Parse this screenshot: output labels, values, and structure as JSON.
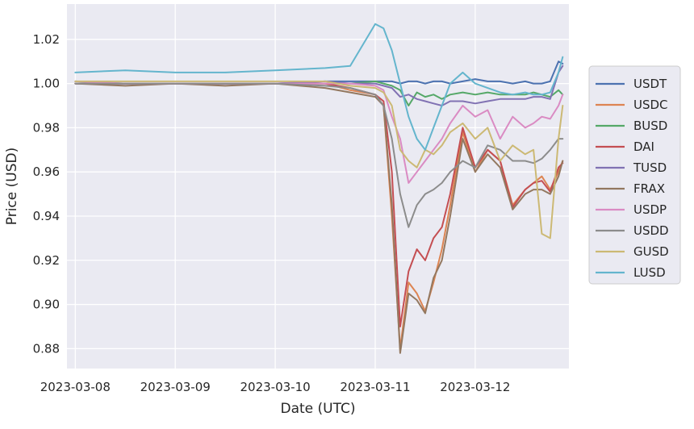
{
  "chart_data": {
    "type": "line",
    "title": "",
    "xlabel": "Date (UTC)",
    "ylabel": "Price (USD)",
    "xlim": [
      "2023-03-07T22:00",
      "2023-03-12T22:30"
    ],
    "ylim": [
      0.871,
      1.036
    ],
    "grid": true,
    "legend_position": "right",
    "x_ticks": [
      "2023-03-08",
      "2023-03-09",
      "2023-03-10",
      "2023-03-11",
      "2023-03-12"
    ],
    "y_ticks": [
      "1.02",
      "1.00",
      "0.98",
      "0.96",
      "0.94",
      "0.92",
      "0.90",
      "0.88"
    ],
    "x": [
      "2023-03-08T00:00",
      "2023-03-08T12:00",
      "2023-03-09T00:00",
      "2023-03-09T12:00",
      "2023-03-10T00:00",
      "2023-03-10T12:00",
      "2023-03-10T18:00",
      "2023-03-11T00:00",
      "2023-03-11T02:00",
      "2023-03-11T04:00",
      "2023-03-11T06:00",
      "2023-03-11T08:00",
      "2023-03-11T10:00",
      "2023-03-11T12:00",
      "2023-03-11T14:00",
      "2023-03-11T16:00",
      "2023-03-11T18:00",
      "2023-03-11T21:00",
      "2023-03-12T00:00",
      "2023-03-12T03:00",
      "2023-03-12T06:00",
      "2023-03-12T09:00",
      "2023-03-12T12:00",
      "2023-03-12T14:00",
      "2023-03-12T16:00",
      "2023-03-12T18:00",
      "2023-03-12T20:00",
      "2023-03-12T21:00"
    ],
    "series": [
      {
        "name": "USDT",
        "color": "#4c72b0",
        "values": [
          1.0,
          1.0,
          1.0,
          1.0,
          1.0,
          1.001,
          1.001,
          1.001,
          1.001,
          1.001,
          1.0,
          1.001,
          1.001,
          1.0,
          1.001,
          1.001,
          1.0,
          1.001,
          1.002,
          1.001,
          1.001,
          1.0,
          1.001,
          1.0,
          1.0,
          1.001,
          1.01,
          1.009
        ]
      },
      {
        "name": "USDC",
        "color": "#dd8452",
        "values": [
          1.0,
          1.0,
          1.0,
          1.0,
          1.0,
          1.0,
          0.997,
          0.995,
          0.99,
          0.94,
          0.88,
          0.91,
          0.905,
          0.897,
          0.91,
          0.925,
          0.945,
          0.978,
          0.96,
          0.97,
          0.965,
          0.945,
          0.952,
          0.955,
          0.958,
          0.952,
          0.96,
          0.965
        ]
      },
      {
        "name": "BUSD",
        "color": "#55a868",
        "values": [
          1.001,
          1.0,
          1.0,
          1.0,
          1.0,
          1.0,
          1.0,
          1.001,
          1.0,
          0.999,
          0.997,
          0.99,
          0.996,
          0.994,
          0.995,
          0.993,
          0.995,
          0.996,
          0.995,
          0.996,
          0.995,
          0.995,
          0.995,
          0.996,
          0.995,
          0.994,
          0.997,
          0.995
        ]
      },
      {
        "name": "DAI",
        "color": "#c44e52",
        "values": [
          1.0,
          1.0,
          1.0,
          1.0,
          1.0,
          1.0,
          0.998,
          0.995,
          0.992,
          0.96,
          0.89,
          0.915,
          0.925,
          0.92,
          0.93,
          0.935,
          0.95,
          0.98,
          0.962,
          0.97,
          0.965,
          0.944,
          0.952,
          0.955,
          0.956,
          0.951,
          0.962,
          0.964
        ]
      },
      {
        "name": "TUSD",
        "color": "#8172b3",
        "values": [
          1.0,
          1.0,
          1.0,
          1.0,
          1.0,
          1.001,
          1.0,
          1.0,
          0.999,
          0.998,
          0.994,
          0.995,
          0.993,
          0.992,
          0.991,
          0.99,
          0.992,
          0.992,
          0.991,
          0.992,
          0.993,
          0.993,
          0.993,
          0.994,
          0.994,
          0.993,
          1.005,
          1.008
        ]
      },
      {
        "name": "FRAX",
        "color": "#937860",
        "values": [
          1.0,
          0.999,
          1.0,
          0.999,
          1.0,
          0.998,
          0.996,
          0.994,
          0.99,
          0.945,
          0.878,
          0.905,
          0.902,
          0.896,
          0.912,
          0.92,
          0.94,
          0.975,
          0.96,
          0.968,
          0.962,
          0.943,
          0.95,
          0.952,
          0.952,
          0.95,
          0.958,
          0.965
        ]
      },
      {
        "name": "USDP",
        "color": "#da8bc3",
        "values": [
          1.001,
          1.0,
          1.0,
          1.0,
          1.0,
          1.0,
          1.0,
          0.999,
          0.997,
          0.985,
          0.975,
          0.955,
          0.96,
          0.965,
          0.97,
          0.975,
          0.982,
          0.99,
          0.985,
          0.988,
          0.975,
          0.985,
          0.98,
          0.982,
          0.985,
          0.984,
          0.99,
          0.995
        ]
      },
      {
        "name": "USDD",
        "color": "#8c8c8c",
        "values": [
          1.0,
          1.0,
          1.0,
          1.0,
          1.0,
          0.999,
          0.998,
          0.995,
          0.99,
          0.975,
          0.95,
          0.935,
          0.945,
          0.95,
          0.952,
          0.955,
          0.96,
          0.965,
          0.962,
          0.972,
          0.97,
          0.965,
          0.965,
          0.964,
          0.966,
          0.97,
          0.975,
          0.975
        ]
      },
      {
        "name": "GUSD",
        "color": "#ccb974",
        "values": [
          1.001,
          1.001,
          1.001,
          1.001,
          1.001,
          1.001,
          0.999,
          0.998,
          0.996,
          0.99,
          0.97,
          0.965,
          0.962,
          0.97,
          0.968,
          0.972,
          0.978,
          0.982,
          0.975,
          0.98,
          0.965,
          0.972,
          0.968,
          0.97,
          0.932,
          0.93,
          0.975,
          0.99
        ]
      },
      {
        "name": "LUSD",
        "color": "#64b5cd",
        "values": [
          1.005,
          1.006,
          1.005,
          1.005,
          1.006,
          1.007,
          1.008,
          1.027,
          1.025,
          1.015,
          1.0,
          0.985,
          0.975,
          0.97,
          0.98,
          0.99,
          1.0,
          1.005,
          1.0,
          0.998,
          0.996,
          0.995,
          0.996,
          0.995,
          0.995,
          0.996,
          1.005,
          1.012
        ]
      }
    ]
  }
}
